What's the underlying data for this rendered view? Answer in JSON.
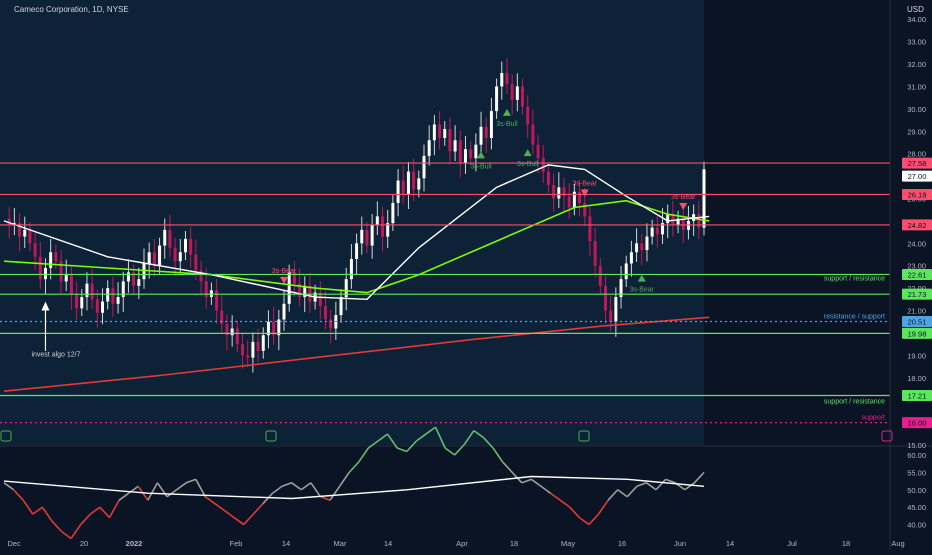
{
  "header": {
    "title": "Cameco Corporation, 1D, NYSE",
    "currency": "USD"
  },
  "colors": {
    "bg": "#0b1424",
    "panel": "#0d2137",
    "future": "#0b1424",
    "up": "#ffffff",
    "down": "#c2185b",
    "wickUp": "#cfd8dc",
    "wickDown": "#c2185b",
    "ema_fast": "#ffffff",
    "ema_mid": "#7cfc00",
    "ema_slow": "#e53935",
    "resistance": "#ff4d6d",
    "support": "#5ce65c",
    "rsi_up": "#66bb6a",
    "rsi_down": "#e53935",
    "rsi_mid": "#9e9e9e"
  },
  "chart_data": [
    {
      "type": "candlestick",
      "title": "Cameco Corporation, 1D, NYSE",
      "ylim": [
        15,
        34.5
      ],
      "y_ticks": [
        15,
        16,
        17,
        18,
        19,
        20,
        21,
        22,
        23,
        24,
        25,
        26,
        27,
        28,
        29,
        30,
        31,
        32,
        33,
        34
      ],
      "y_tick_labels": [
        "15.00",
        "",
        "",
        "18.00",
        "19.00",
        "20.00",
        "21.00",
        "22.00",
        "23.00",
        "24.00",
        "",
        "26.00",
        "27.00",
        "28.00",
        "29.00",
        "30.00",
        "31.00",
        "32.00",
        "33.00",
        "34.00"
      ],
      "x_labels": [
        "Dec",
        "20",
        "2022",
        "Feb",
        "14",
        "Mar",
        "14",
        "Apr",
        "18",
        "May",
        "16",
        "Jun",
        "14",
        "Jul",
        "18",
        "Aug"
      ],
      "x_label_bold": [
        "2022"
      ],
      "ohlc_path": [
        25.1,
        24.8,
        24.9,
        24.3,
        24.6,
        24.0,
        23.4,
        22.4,
        22.9,
        23.6,
        23.2,
        22.3,
        22.6,
        21.7,
        21.1,
        21.6,
        22.2,
        21.5,
        20.9,
        21.4,
        22.0,
        21.3,
        21.6,
        22.3,
        22.7,
        22.1,
        22.4,
        23.1,
        23.6,
        23.0,
        23.9,
        24.6,
        23.8,
        23.2,
        23.6,
        24.2,
        23.5,
        22.8,
        22.3,
        21.6,
        21.9,
        21.0,
        20.4,
        19.9,
        20.2,
        19.5,
        19.0,
        18.9,
        19.6,
        19.2,
        19.9,
        20.5,
        19.9,
        20.6,
        21.3,
        22.7,
        22.2,
        21.6,
        22.1,
        21.4,
        21.8,
        21.2,
        20.6,
        20.2,
        20.8,
        21.6,
        22.4,
        23.3,
        24.0,
        24.6,
        23.9,
        24.8,
        25.2,
        24.3,
        24.9,
        25.8,
        26.8,
        26.2,
        27.2,
        26.4,
        26.9,
        27.9,
        28.6,
        29.3,
        28.7,
        29.1,
        28.1,
        28.6,
        27.6,
        28.2,
        27.8,
        28.4,
        29.2,
        28.7,
        29.9,
        31.0,
        31.6,
        31.1,
        30.4,
        31.0,
        30.1,
        29.3,
        28.4,
        27.8,
        27.2,
        26.6,
        26.0,
        26.5,
        26.1,
        25.6,
        26.3,
        25.8,
        25.2,
        24.1,
        23.0,
        22.1,
        21.0,
        20.5,
        21.6,
        22.4,
        23.1,
        23.6,
        24.0,
        23.7,
        24.3,
        24.7,
        24.4,
        24.9,
        25.3,
        24.8,
        25.1,
        24.6,
        25.0,
        25.3,
        24.7,
        27.3
      ],
      "future_start_index": 136,
      "ema_fast": [
        [
          0,
          25.0
        ],
        [
          20,
          23.4
        ],
        [
          40,
          22.6
        ],
        [
          60,
          21.6
        ],
        [
          70,
          21.5
        ],
        [
          80,
          23.8
        ],
        [
          95,
          26.5
        ],
        [
          105,
          27.5
        ],
        [
          112,
          27.3
        ],
        [
          120,
          26.1
        ],
        [
          128,
          25.0
        ],
        [
          136,
          25.2
        ]
      ],
      "ema_mid": [
        [
          0,
          23.2
        ],
        [
          20,
          22.9
        ],
        [
          40,
          22.6
        ],
        [
          60,
          22.0
        ],
        [
          70,
          21.8
        ],
        [
          80,
          22.6
        ],
        [
          95,
          24.1
        ],
        [
          110,
          25.6
        ],
        [
          120,
          25.9
        ],
        [
          128,
          25.3
        ],
        [
          136,
          25.0
        ]
      ],
      "ema_slow": [
        [
          0,
          17.4
        ],
        [
          30,
          18.1
        ],
        [
          60,
          18.9
        ],
        [
          90,
          19.7
        ],
        [
          115,
          20.3
        ],
        [
          136,
          20.7
        ]
      ],
      "horizontal_levels": [
        {
          "value": 27.58,
          "label": "27.58",
          "kind": "resistance"
        },
        {
          "value": 26.18,
          "label": "26.18",
          "kind": "resistance"
        },
        {
          "value": 24.82,
          "label": "24.82",
          "kind": "resistance"
        },
        {
          "value": 22.61,
          "label": "22.61",
          "kind": "support",
          "text": "support / resistance"
        },
        {
          "value": 21.73,
          "label": "21.73",
          "kind": "support"
        },
        {
          "value": 20.51,
          "label": "20.51",
          "kind": "blue",
          "text": "resistance / support"
        },
        {
          "value": 19.98,
          "label": "19.98",
          "kind": "support"
        },
        {
          "value": 17.21,
          "label": "17.21",
          "kind": "support",
          "text": "support / resistance"
        },
        {
          "value": 16.0,
          "label": "16.00",
          "kind": "pink",
          "text": "support"
        }
      ],
      "current_price": "27.00",
      "signals": [
        {
          "index": 54,
          "text": "3s-Bear",
          "kind": "bear"
        },
        {
          "index": 97,
          "text": "3s-Bull",
          "kind": "bull"
        },
        {
          "index": 92,
          "text": "3s-Bull",
          "kind": "bull"
        },
        {
          "index": 101,
          "text": "3s-Bull",
          "kind": "bull"
        },
        {
          "index": 112,
          "text": "3s-Bear",
          "kind": "bear"
        },
        {
          "index": 123,
          "text": "3s-Bear",
          "kind": "bull"
        },
        {
          "index": 131,
          "text": "3s-Bear",
          "kind": "bear"
        }
      ],
      "annotation": "invest algo 12/7"
    },
    {
      "type": "line",
      "title": "",
      "ylim": [
        37,
        62
      ],
      "y_ticks": [
        40,
        45,
        50,
        55,
        60
      ],
      "y_tick_labels": [
        "40.00",
        "45.00",
        "50.00",
        "55.00",
        "60.00"
      ],
      "rsi": [
        52,
        50,
        47,
        43,
        45,
        41,
        38,
        36,
        40,
        43,
        45,
        42,
        47,
        49,
        51,
        47,
        52,
        48,
        50,
        52,
        53,
        48,
        46,
        44,
        42,
        40,
        43,
        46,
        49,
        51,
        52,
        50,
        52,
        48,
        47,
        51,
        55,
        58,
        62,
        64,
        66,
        62,
        61,
        64,
        66,
        68,
        62,
        60,
        63,
        67,
        65,
        62,
        58,
        55,
        52,
        53,
        51,
        49,
        47,
        45,
        42,
        40,
        43,
        47,
        50,
        48,
        51,
        52,
        50,
        53,
        52,
        50,
        52,
        55
      ],
      "rsi_ma": [
        [
          0,
          52.5
        ],
        [
          15,
          49
        ],
        [
          30,
          47.5
        ],
        [
          42,
          50
        ],
        [
          55,
          53.8
        ],
        [
          65,
          53
        ],
        [
          73,
          51
        ]
      ]
    }
  ]
}
